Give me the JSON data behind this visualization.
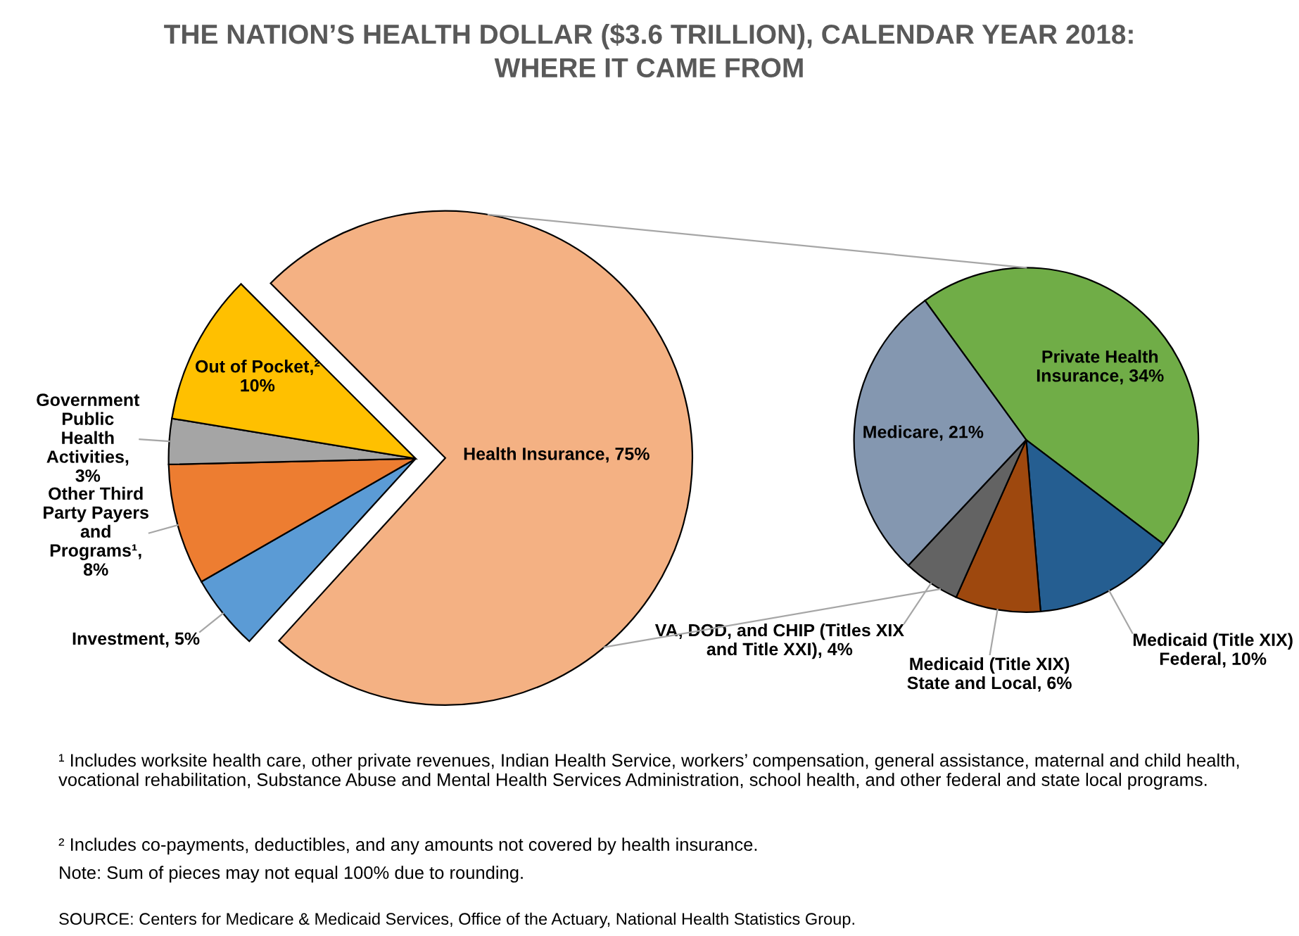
{
  "chart_data": [
    {
      "type": "pie",
      "title": "THE NATION’S HEALTH DOLLAR ($3.6 TRILLION), CALENDAR YEAR 2018:\nWHERE IT CAME FROM",
      "categories": [
        "Health Insurance, 75%",
        "Investment, 5%",
        "Other Third\nParty Payers\nand\nPrograms¹,\n8%",
        "Government\nPublic\nHealth\nActivities,\n3%",
        "Out of Pocket,²\n10%"
      ],
      "values": [
        75,
        5,
        8,
        3,
        10
      ],
      "colors": [
        "#f4b183",
        "#5b9bd5",
        "#ed7d31",
        "#a5a5a5",
        "#ffc000"
      ],
      "annotations": [
        "¹ Includes worksite health care, other private revenues, Indian Health Service, workers’ compensation, general assistance, maternal and child health, vocational rehabilitation, Substance Abuse and Mental Health Services Administration, school health, and other federal and state local programs.",
        "² Includes co-payments, deductibles, and any amounts not covered by health insurance.",
        "Note: Sum of pieces may not equal 100% due to rounding.",
        "SOURCE: Centers for Medicare & Medicaid Services, Office of the Actuary, National Health Statistics Group."
      ]
    },
    {
      "type": "pie",
      "categories": [
        "Private Health\nInsurance, 34%",
        "Medicaid (Title XIX)\nFederal, 10%",
        "Medicaid (Title XIX)\nState and Local, 6%",
        "VA, DOD, and CHIP (Titles XIX\nand Title XXI), 4%",
        "Medicare, 21%"
      ],
      "values": [
        34,
        10,
        6,
        4,
        21
      ],
      "colors": [
        "#70ad47",
        "#255e91",
        "#9e480e",
        "#636363",
        "#8497b0"
      ]
    }
  ]
}
